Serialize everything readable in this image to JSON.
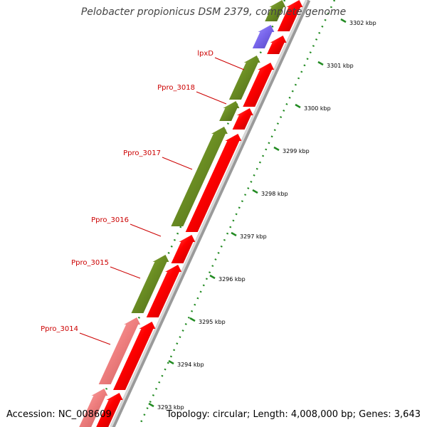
{
  "title": "Pelobacter propionicus DSM 2379, complete genome",
  "footer": {
    "accession": "Accession: NC_008609",
    "summary": "Topology: circular; Length: 4,008,000 bp; Genes: 3,643"
  },
  "colors": {
    "background": "#ffffff",
    "backbone": "#8c8c8c",
    "cds": "#ff0000",
    "forward_feature": "#6b8e23",
    "pseudogene": "#f08080",
    "rna": "#7b68ee",
    "tick": "#228b22",
    "label": "#cc0000"
  },
  "axis": {
    "unit": "kbp",
    "tick_labels": [
      "3293 kbp",
      "3294 kbp",
      "3295 kbp",
      "3296 kbp",
      "3297 kbp",
      "3298 kbp",
      "3299 kbp",
      "3300 kbp",
      "3301 kbp",
      "3302 kbp"
    ]
  },
  "gene_labels": [
    "lpxD",
    "Ppro_3018",
    "Ppro_3017",
    "Ppro_3016",
    "Ppro_3015",
    "Ppro_3014"
  ]
}
